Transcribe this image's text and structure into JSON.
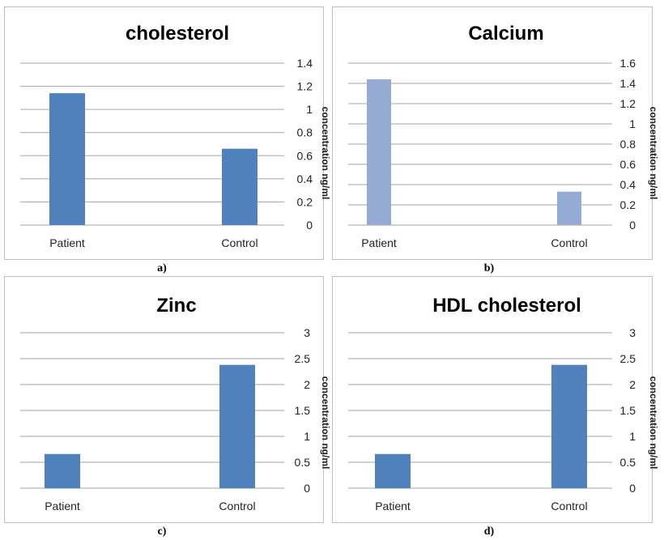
{
  "chart_data": [
    {
      "type": "bar",
      "title": "cholesterol",
      "categories": [
        "Patient",
        "Control"
      ],
      "series": [
        {
          "values": [
            1.14,
            0.66
          ]
        }
      ],
      "ylim": [
        0,
        1.4
      ],
      "yticks": [
        "1.4",
        "1.2",
        "1",
        "0.8",
        "0.6",
        "0.4",
        "0.2",
        "0"
      ],
      "ylabel": "concentration ng/ml",
      "grid": true,
      "bar_color": "#4f81bd"
    },
    {
      "type": "bar",
      "title": "Calcium",
      "categories": [
        "Patient",
        "Control"
      ],
      "series": [
        {
          "values": [
            1.44,
            0.33
          ]
        }
      ],
      "ylim": [
        0,
        1.6
      ],
      "yticks": [
        "1.6",
        "1.4",
        "1.2",
        "1",
        "0.8",
        "0.6",
        "0.4",
        "0.2",
        "0"
      ],
      "ylabel": "concentration ng/ml",
      "grid": true,
      "bar_color": "#95abd3"
    },
    {
      "type": "bar",
      "title": "Zinc",
      "categories": [
        "Patient",
        "Control"
      ],
      "series": [
        {
          "values": [
            0.66,
            2.38
          ]
        }
      ],
      "ylim": [
        0,
        3
      ],
      "yticks": [
        "3",
        "2.5",
        "2",
        "1.5",
        "1",
        "0.5",
        "0"
      ],
      "ylabel": "concentration ng/ml",
      "grid": true,
      "bar_color": "#4f81bd"
    },
    {
      "type": "bar",
      "title": "HDL cholesterol",
      "categories": [
        "Patient",
        "Control"
      ],
      "series": [
        {
          "values": [
            0.66,
            2.38
          ]
        }
      ],
      "ylim": [
        0,
        3
      ],
      "yticks": [
        "3",
        "2.5",
        "2",
        "1.5",
        "1",
        "0.5",
        "0"
      ],
      "ylabel": "concentration ng/ml",
      "grid": true,
      "bar_color": "#4f81bd"
    }
  ],
  "captions": [
    "a)",
    "b)",
    "c)",
    "d)"
  ],
  "colors": {
    "gridline": "#a6a6a6",
    "border": "#bfbfbf"
  }
}
